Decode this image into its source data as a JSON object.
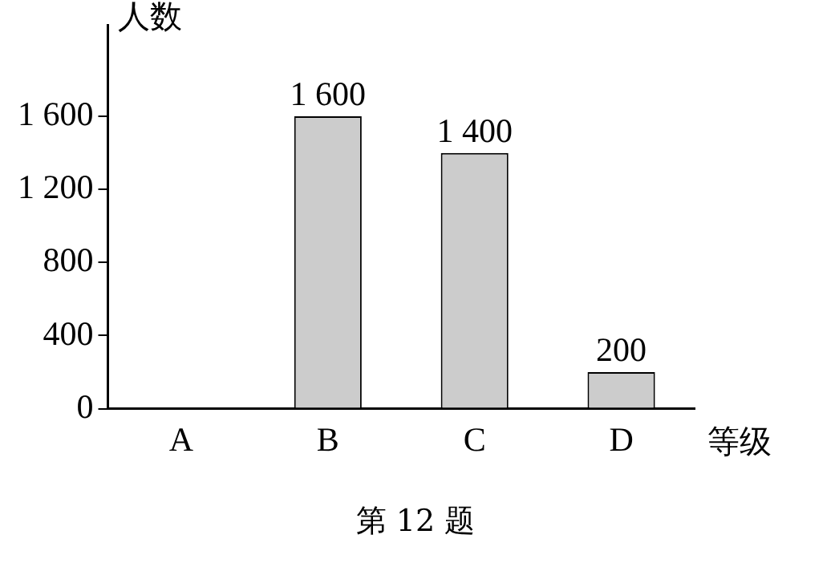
{
  "chart_data": {
    "type": "bar",
    "ylabel": "人数",
    "xlabel": "等级",
    "categories": [
      "A",
      "B",
      "C",
      "D"
    ],
    "values": [
      null,
      1600,
      1400,
      200
    ],
    "value_labels": [
      null,
      "1 600",
      "1 400",
      "200"
    ],
    "color": "#cccccc",
    "ylim": [
      0,
      2100
    ],
    "yticks": [
      0,
      400,
      800,
      {
        "value": 1200,
        "label": "1 200"
      },
      {
        "value": 1600,
        "label": "1 600"
      }
    ],
    "grid": false,
    "annotations": [
      "第 12 题"
    ]
  }
}
